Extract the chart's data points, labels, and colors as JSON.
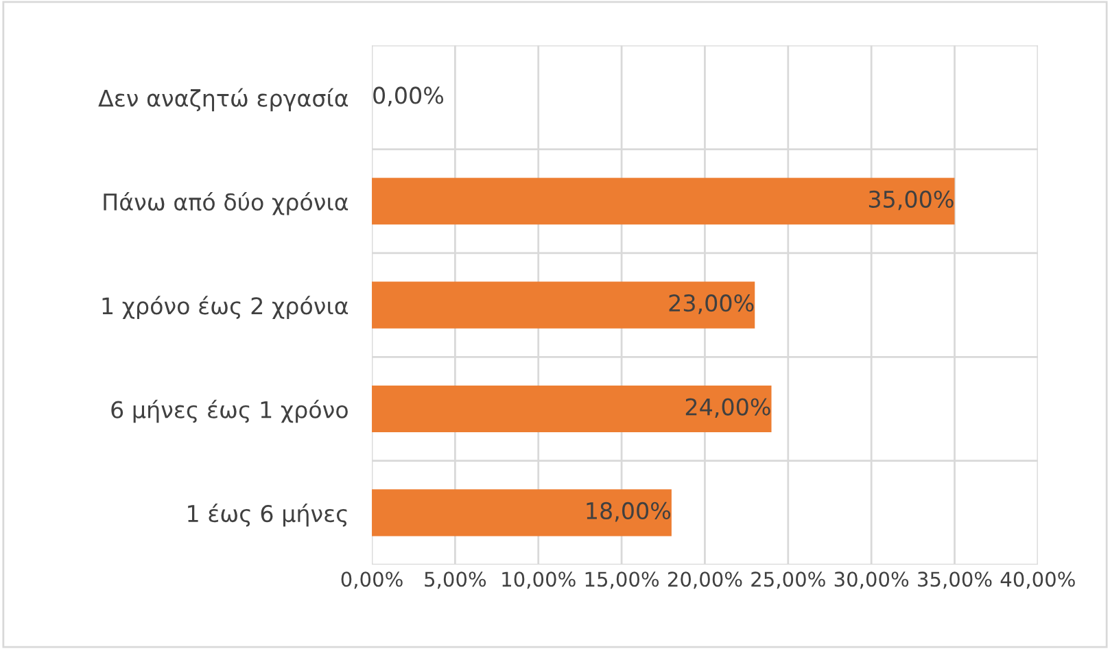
{
  "chart_data": {
    "type": "bar",
    "orientation": "horizontal",
    "categories": [
      "Δεν αναζητώ εργασία",
      "Πάνω από δύο χρόνια",
      "1 χρόνο έως 2 χρόνια",
      "6 μήνες έως 1 χρόνο",
      "1 έως 6 μήνες"
    ],
    "values": [
      0,
      35,
      23,
      24,
      18
    ],
    "value_labels": [
      "0,00%",
      "35,00%",
      "23,00%",
      "24,00%",
      "18,00%"
    ],
    "color": "#ed7d31",
    "xlim": [
      0,
      40
    ],
    "xticks": [
      {
        "value": 0,
        "label": "0,00%"
      },
      {
        "value": 5,
        "label": "5,00%"
      },
      {
        "value": 10,
        "label": "10,00%"
      },
      {
        "value": 15,
        "label": "15,00%"
      },
      {
        "value": 20,
        "label": "20,00%"
      },
      {
        "value": 25,
        "label": "25,00%"
      },
      {
        "value": 30,
        "label": "30,00%"
      },
      {
        "value": 35,
        "label": "35,00%"
      },
      {
        "value": 40,
        "label": "40,00%"
      }
    ],
    "grid": true,
    "legend": false
  }
}
